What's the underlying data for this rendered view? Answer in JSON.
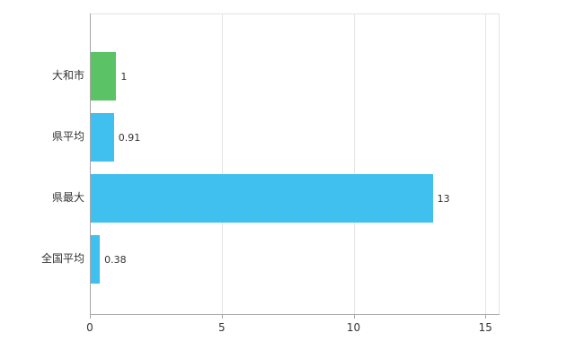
{
  "chart_data": {
    "type": "bar",
    "orientation": "horizontal",
    "title": "",
    "categories": [
      "大和市",
      "県平均",
      "県最大",
      "全国平均"
    ],
    "values": [
      1,
      0.91,
      13,
      0.38
    ],
    "value_labels": [
      "1",
      "0.91",
      "13",
      "0.38"
    ],
    "bar_colors": [
      "#5cc266",
      "#3fc0ee",
      "#3fc0ee",
      "#3fc0ee"
    ],
    "xlim": [
      0,
      15.5
    ],
    "xticks": [
      0,
      5,
      10,
      15
    ],
    "grid": true,
    "legend_position": "none"
  },
  "colors": {
    "background": "#ffffff",
    "grid": "#e4e4e4",
    "axis": "#a6a6a6",
    "label_text": "#333333",
    "value_text": "#333333"
  }
}
